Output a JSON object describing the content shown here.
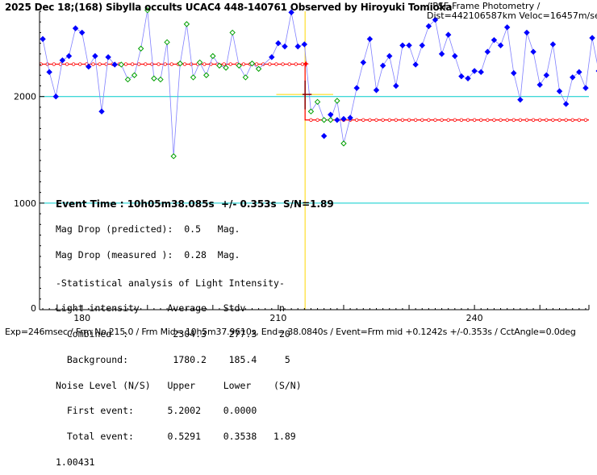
{
  "header": {
    "title": "2025 Dec 18;(168) Sibylla occults UCAC4 448-140761 Observed by Hiroyuki Tomioka",
    "subtitle_line1": "/ PSF-Frame Photometry /",
    "subtitle_line2": "Dist=442106587km Veloc=16457m/sec"
  },
  "footer": {
    "text": "Exp=246msec / Frm No.215.0 / Frm Mid= 10h5m37.9610s, End= 38.0840s / Event=Frm mid +0.1242s +/-0.353s / CctAngle=0.0deg"
  },
  "info": {
    "event_time": "Event Time : 10h05m38.085s  +/- 0.353s  S/N=1.89",
    "mag_drop_pred": "Mag Drop (predicted):  0.5   Mag.",
    "mag_drop_meas": "Mag Drop (measured ):  0.28  Mag.",
    "stat_title": "-Statistical analysis of Light Intensity-",
    "stat_header": "Light intensity     Average   Stdv      n",
    "combined": "  Combined  :        2304.3    277.3    20",
    "background": "  Background:        1780.2    185.4     5",
    "noise_header": "Noise Level (N/S)   Upper     Lower    (S/N)",
    "first_event": "  First event:      5.2002    0.0000",
    "total_event": "  Total event:      0.5291    0.3538   1.89",
    "extra": "1.00431"
  },
  "colors": {
    "blue_series": "#0000ff",
    "green_series": "#00a000",
    "model": "#ff0000",
    "event_line": "#ffd700",
    "ref_line": "#00cccc",
    "error_bar": "#8b0000"
  },
  "chart_data": {
    "type": "line",
    "xlim": [
      173.5,
      257.5
    ],
    "ylim": [
      0,
      2800
    ],
    "x_ticks": [
      180,
      210,
      240
    ],
    "y_ticks": [
      1000,
      2000
    ],
    "x_tick_labels": [
      "180",
      "210",
      "240"
    ],
    "y_tick_labels": [
      "1000",
      "2000"
    ],
    "reference_lines_y": [
      2000,
      1000
    ],
    "event_x": 214.1,
    "event_y": 2020,
    "event_hbar": [
      209.7,
      218.4
    ],
    "event_err_x": [
      213.7,
      215.1
    ],
    "event_err_y": [
      1880,
      2150
    ],
    "model": {
      "pre_level": 2304,
      "post_level": 1780,
      "step_x": 214.1
    },
    "series": [
      {
        "name": "blue",
        "points": [
          [
            174,
            2540
          ],
          [
            175,
            2230
          ],
          [
            176,
            2000
          ],
          [
            177,
            2340
          ],
          [
            178,
            2380
          ],
          [
            179,
            2640
          ],
          [
            180,
            2600
          ],
          [
            181,
            2280
          ],
          [
            182,
            2380
          ],
          [
            183,
            1860
          ],
          [
            184,
            2370
          ],
          [
            185,
            2300
          ],
          [
            209,
            2370
          ],
          [
            210,
            2500
          ],
          [
            211,
            2470
          ],
          [
            212,
            2790
          ],
          [
            213,
            2470
          ],
          [
            214,
            2490
          ],
          [
            217,
            1630
          ],
          [
            218,
            1830
          ],
          [
            219,
            1780
          ],
          [
            220,
            1790
          ],
          [
            221,
            1800
          ],
          [
            222,
            2080
          ],
          [
            223,
            2320
          ],
          [
            224,
            2540
          ],
          [
            225,
            2060
          ],
          [
            226,
            2290
          ],
          [
            227,
            2380
          ],
          [
            228,
            2100
          ],
          [
            229,
            2480
          ],
          [
            230,
            2480
          ],
          [
            231,
            2300
          ],
          [
            232,
            2480
          ],
          [
            233,
            2660
          ],
          [
            234,
            2720
          ],
          [
            235,
            2400
          ],
          [
            236,
            2580
          ],
          [
            237,
            2380
          ],
          [
            238,
            2190
          ],
          [
            239,
            2170
          ],
          [
            240,
            2240
          ],
          [
            241,
            2230
          ],
          [
            242,
            2420
          ],
          [
            243,
            2530
          ],
          [
            244,
            2480
          ],
          [
            245,
            2650
          ],
          [
            246,
            2220
          ],
          [
            247,
            1970
          ],
          [
            248,
            2600
          ],
          [
            249,
            2420
          ],
          [
            250,
            2110
          ],
          [
            251,
            2200
          ],
          [
            252,
            2490
          ],
          [
            253,
            2050
          ],
          [
            254,
            1930
          ],
          [
            255,
            2180
          ],
          [
            256,
            2230
          ],
          [
            257,
            2080
          ],
          [
            258,
            2550
          ],
          [
            259,
            2240
          ]
        ]
      },
      {
        "name": "green",
        "points": [
          [
            186,
            2300
          ],
          [
            187,
            2160
          ],
          [
            188,
            2200
          ],
          [
            189,
            2450
          ],
          [
            190,
            2810
          ],
          [
            191,
            2170
          ],
          [
            192,
            2160
          ],
          [
            193,
            2510
          ],
          [
            194,
            1440
          ],
          [
            195,
            2310
          ],
          [
            196,
            2680
          ],
          [
            197,
            2180
          ],
          [
            198,
            2320
          ],
          [
            199,
            2200
          ],
          [
            200,
            2380
          ],
          [
            201,
            2290
          ],
          [
            202,
            2270
          ],
          [
            203,
            2600
          ],
          [
            204,
            2290
          ],
          [
            205,
            2180
          ],
          [
            206,
            2310
          ],
          [
            207,
            2260
          ],
          [
            215,
            1860
          ],
          [
            216,
            1950
          ],
          [
            217,
            1780
          ],
          [
            218,
            1780
          ],
          [
            219,
            1960
          ],
          [
            220,
            1560
          ]
        ]
      }
    ]
  }
}
